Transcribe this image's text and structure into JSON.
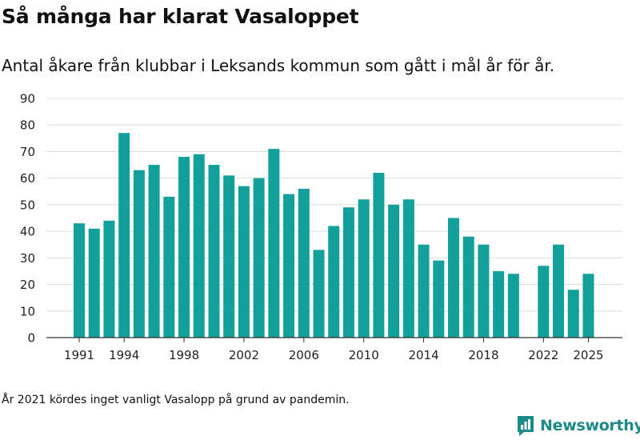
{
  "header": {
    "title": "Så många har klarat Vasaloppet",
    "subtitle": "Antal åkare från klubbar i Leksands kommun som gått i mål år för år."
  },
  "footnote": "År 2021 kördes inget vanligt Vasalopp på grund av pandemin.",
  "brand": {
    "name": "Newsworthy",
    "color": "#1d8a8a"
  },
  "colors": {
    "bar": "#11a09a",
    "grid": "#dddddd",
    "axis": "#333333"
  },
  "chart_data": {
    "type": "bar",
    "title": "Så många har klarat Vasaloppet",
    "xlabel": "",
    "ylabel": "",
    "ylim": [
      0,
      90
    ],
    "yticks": [
      0,
      10,
      20,
      30,
      40,
      50,
      60,
      70,
      80,
      90
    ],
    "xticks": [
      "1991",
      "1994",
      "1998",
      "2002",
      "2006",
      "2010",
      "2014",
      "2018",
      "2022",
      "2025"
    ],
    "grid": true,
    "categories": [
      "1991",
      "1992",
      "1993",
      "1994",
      "1995",
      "1996",
      "1997",
      "1998",
      "1999",
      "2000",
      "2001",
      "2002",
      "2003",
      "2004",
      "2005",
      "2006",
      "2007",
      "2008",
      "2009",
      "2010",
      "2011",
      "2012",
      "2013",
      "2014",
      "2015",
      "2016",
      "2017",
      "2018",
      "2019",
      "2020",
      "2021",
      "2022",
      "2023",
      "2024",
      "2025"
    ],
    "values": [
      43,
      41,
      44,
      77,
      63,
      65,
      53,
      68,
      69,
      65,
      61,
      57,
      60,
      71,
      54,
      56,
      33,
      42,
      49,
      52,
      62,
      50,
      52,
      35,
      29,
      45,
      38,
      35,
      25,
      24,
      null,
      27,
      35,
      18,
      24
    ]
  }
}
